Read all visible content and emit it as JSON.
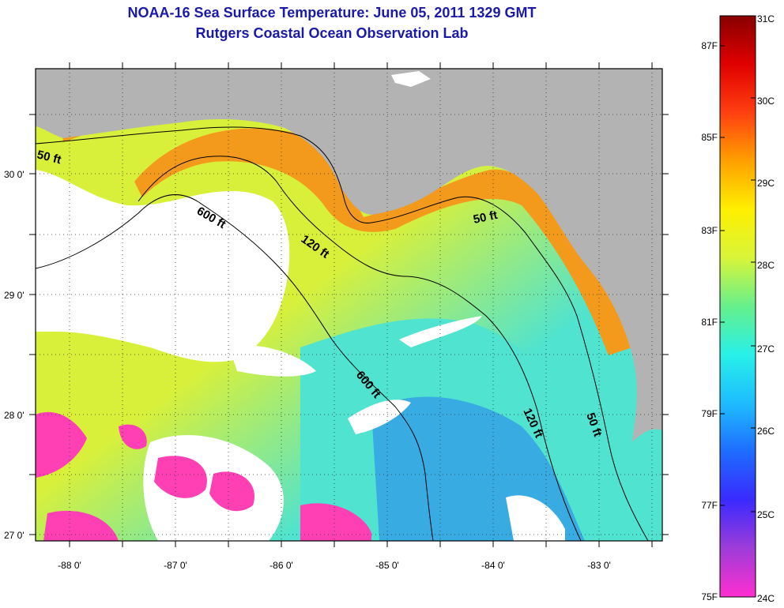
{
  "title": "NOAA-16 Sea Surface Temperature:  June 05, 2011 1329 GMT",
  "subtitle": "Rutgers Coastal Ocean Observation Lab",
  "map": {
    "longitude_labels": [
      "-88 0'",
      "-87 0'",
      "-86 0'",
      "-85 0'",
      "-84 0'",
      "-83 0'"
    ],
    "latitude_labels": [
      "30 0'",
      "29 0'",
      "28 0'",
      "27 0'"
    ],
    "contour_labels": [
      "50 ft",
      "600 ft",
      "120 ft",
      "50 ft",
      "600 ft",
      "120 ft",
      "50 ft"
    ],
    "colors": {
      "land": "#b3b3b3",
      "cloud": "#ffffff",
      "water_warm": "#f39a1c",
      "water_mid": "#d9f03a",
      "water_cool": "#4fe3d0",
      "water_cold": "#2a86f0",
      "cold_artifact": "#ff3fb4"
    }
  },
  "colorbar": {
    "celsius_labels": [
      "31C",
      "30C",
      "29C",
      "28C",
      "27C",
      "26C",
      "25C",
      "24C"
    ],
    "fahrenheit_labels": [
      "87F",
      "85F",
      "83F",
      "81F",
      "79F",
      "77F",
      "75F"
    ],
    "colors": [
      "#ff2fd0",
      "#9f3cd8",
      "#3a2aff",
      "#1e6cff",
      "#1ebcff",
      "#28f0e8",
      "#66f08c",
      "#d8f43a",
      "#fff000",
      "#ffa000",
      "#ff4010",
      "#e00000",
      "#880000"
    ]
  }
}
